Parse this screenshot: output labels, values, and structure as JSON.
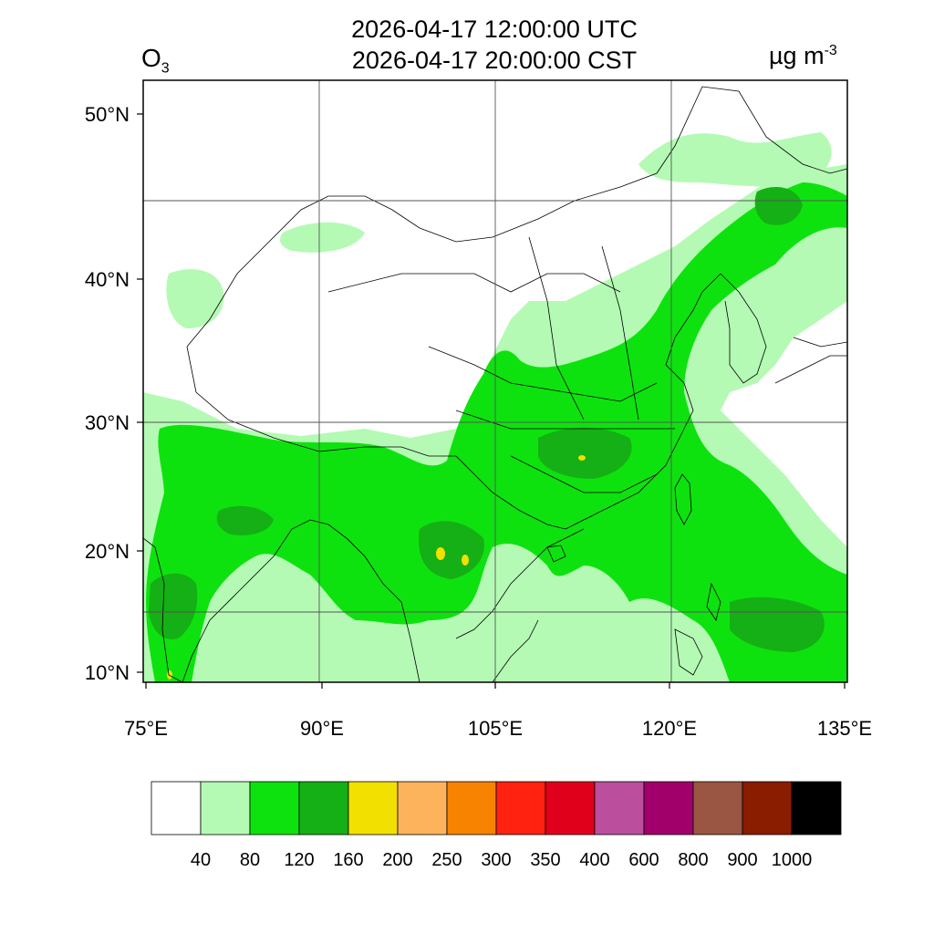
{
  "title": {
    "utc": "2026-04-17 12:00:00 UTC",
    "cst": "2026-04-17 20:00:00 CST"
  },
  "species": {
    "base": "O",
    "sub": "3"
  },
  "unit": {
    "base": "µg m",
    "sup": "-3"
  },
  "map": {
    "lon_range": [
      75,
      135
    ],
    "lat_range": [
      9,
      52
    ],
    "lon_ticks": [
      {
        "value": 75,
        "label": "75°E"
      },
      {
        "value": 90,
        "label": "90°E"
      },
      {
        "value": 105,
        "label": "105°E"
      },
      {
        "value": 120,
        "label": "120°E"
      },
      {
        "value": 135,
        "label": "135°E"
      }
    ],
    "lat_ticks": [
      {
        "value": 10,
        "label": "10°N"
      },
      {
        "value": 20,
        "label": "20°N"
      },
      {
        "value": 30,
        "label": "30°N"
      },
      {
        "value": 40,
        "label": "40°N"
      },
      {
        "value": 50,
        "label": "50°N"
      }
    ],
    "colors": {
      "c1": "#b4fab4",
      "c2": "#0ee20e",
      "c3": "#15b015",
      "c4": "#f2e000",
      "border": "#000000",
      "grid": "#555555"
    }
  },
  "colorbar": {
    "colors": [
      "#ffffff",
      "#b4fab4",
      "#0ee20e",
      "#15b015",
      "#f2e000",
      "#fdb35c",
      "#f78300",
      "#ff2210",
      "#e0001c",
      "#bb4f9e",
      "#a1006b",
      "#9b5543",
      "#8a1c00",
      "#000000"
    ],
    "labels": [
      "40",
      "80",
      "120",
      "160",
      "200",
      "250",
      "300",
      "350",
      "400",
      "600",
      "800",
      "900",
      "1000"
    ]
  }
}
